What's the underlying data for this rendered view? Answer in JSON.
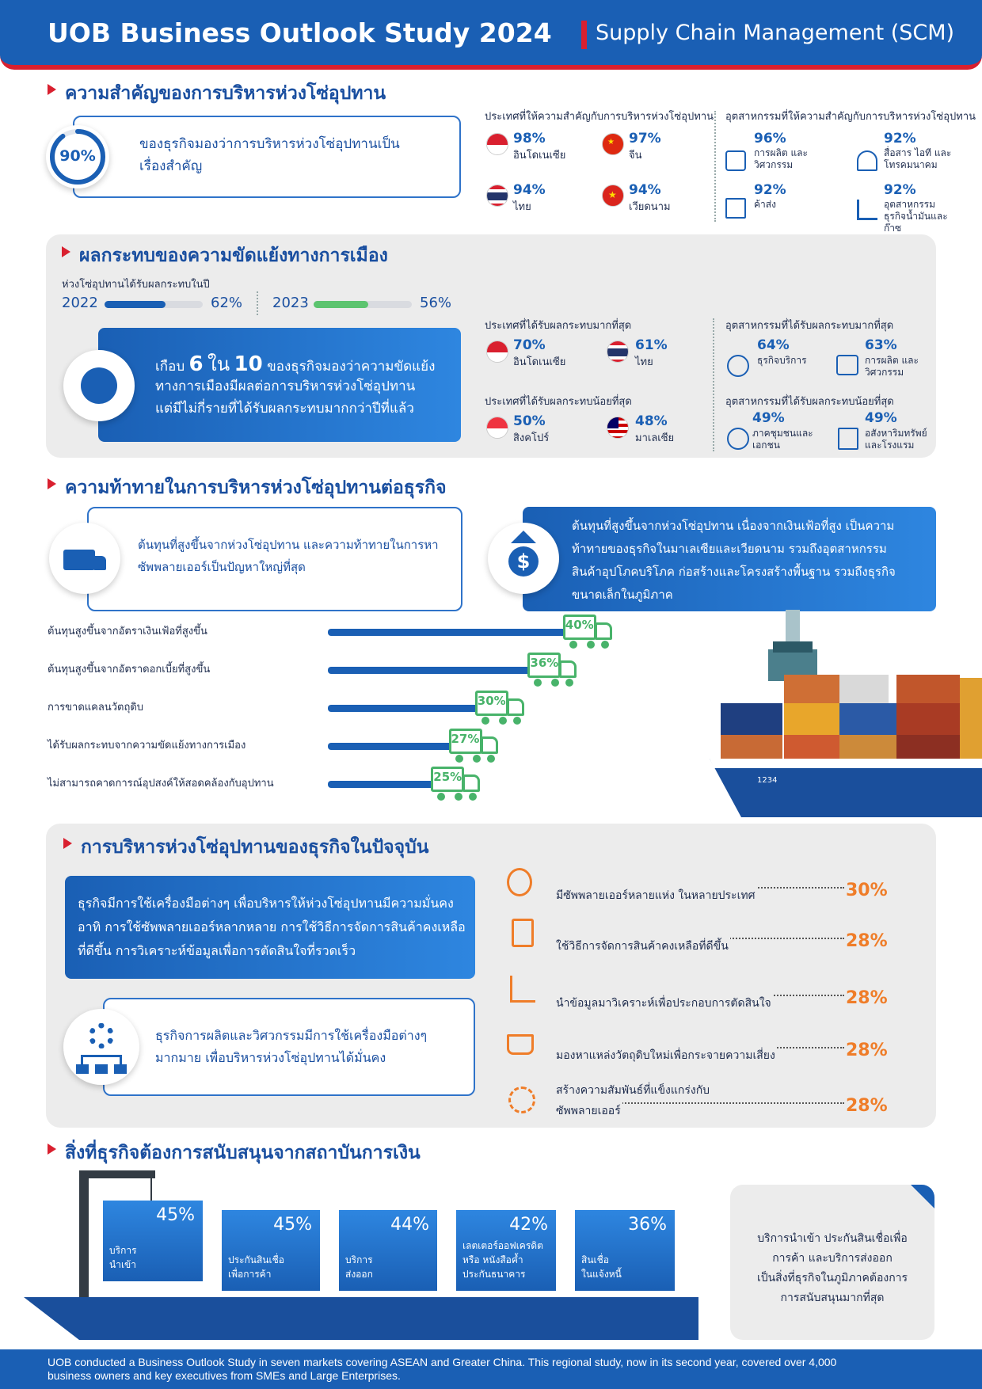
{
  "header": {
    "title": "UOB Business Outlook Study 2024",
    "subtitle": "Supply Chain Management (SCM)"
  },
  "section1": {
    "title": "ความสำคัญของการบริหารห่วงโซ่อุปทาน",
    "main_stat": {
      "value": "90%",
      "fraction": 0.9,
      "text": "ของธุรกิจมองว่าการบริหารห่วงโซ่อุปทานเป็นเรื่องสำคัญ"
    },
    "countries_title": "ประเทศที่ให้ความสำคัญกับการบริหารห่วงโซ่อุปทาน",
    "countries": [
      {
        "pct": "98%",
        "name": "อินโดเนเซีย",
        "flag": "indonesia-flag"
      },
      {
        "pct": "97%",
        "name": "จีน",
        "flag": "china-flag"
      },
      {
        "pct": "94%",
        "name": "ไทย",
        "flag": "thailand-flag"
      },
      {
        "pct": "94%",
        "name": "เวียดนาม",
        "flag": "vietnam-flag"
      }
    ],
    "industries_title": "อุตสาหกรรมที่ให้ความสำคัญกับการบริหารห่วงโซ่อุปทาน",
    "industries": [
      {
        "pct": "96%",
        "name": "การผลิต และ วิศวกรรม",
        "icon": "manufacturing-icon"
      },
      {
        "pct": "92%",
        "name": "สื่อสาร ไอที และ โทรคมนาคม",
        "icon": "telecom-icon"
      },
      {
        "pct": "92%",
        "name": "ค้าส่ง",
        "icon": "wholesale-icon"
      },
      {
        "pct": "92%",
        "name": "อุตสาหกรรมธุรกิจน้ำมันและก๊าซ",
        "icon": "oil-gas-icon"
      }
    ]
  },
  "section2": {
    "title": "ผลกระทบของความขัดแย้งทางการเมือง",
    "impact_label": "ห่วงโซ่อุปทานได้รับผลกระทบในปี",
    "years": [
      {
        "year": "2022",
        "pct": "62%",
        "value": 62,
        "color": "#1a5fb4"
      },
      {
        "year": "2023",
        "pct": "56%",
        "value": 56,
        "color": "#5cc46f"
      }
    ],
    "highlight": {
      "prefix": "เกือบ",
      "emph1": "6",
      "mid": "ใน",
      "emph2": "10",
      "line1": "ของธุรกิจมองว่าความขัดแย้ง",
      "line2": "ทางการเมืองมีผลต่อการบริหารห่วงโซ่อุปทาน",
      "line3": "แต่มีไม่กี่รายที่ได้รับผลกระทบมากกว่าปีที่แล้ว"
    },
    "most_country_title": "ประเทศที่ได้รับผลกระทบมากที่สุด",
    "most_countries": [
      {
        "pct": "70%",
        "name": "อินโดเนเซีย",
        "flag": "indonesia-flag"
      },
      {
        "pct": "61%",
        "name": "ไทย",
        "flag": "thailand-flag"
      }
    ],
    "least_country_title": "ประเทศที่ได้รับผลกระทบน้อยที่สุด",
    "least_countries": [
      {
        "pct": "50%",
        "name": "สิงคโปร์",
        "flag": "singapore-flag"
      },
      {
        "pct": "48%",
        "name": "มาเลเซีย",
        "flag": "malaysia-flag"
      }
    ],
    "most_industry_title": "อุตสาหกรรมที่ได้รับผลกระทบมากที่สุด",
    "most_industries": [
      {
        "pct": "64%",
        "name": "ธุรกิจบริการ",
        "icon": "services-icon"
      },
      {
        "pct": "63%",
        "name": "การผลิต และ วิศวกรรม",
        "icon": "manufacturing-icon"
      }
    ],
    "least_industry_title": "อุตสาหกรรมที่ได้รับผลกระทบน้อยที่สุด",
    "least_industries": [
      {
        "pct": "49%",
        "name": "ภาคชุมชนและเอกชน",
        "icon": "community-icon"
      },
      {
        "pct": "49%",
        "name": "อสังหาริมทรัพย์และโรงแรม",
        "icon": "real-estate-icon"
      }
    ]
  },
  "section3": {
    "title": "ความท้าทายในการบริหารห่วงโซ่อุปทานต่อธุรกิจ",
    "box1_line1": "ต้นทุนที่สูงขึ้นจากห่วงโซ่อุปทาน และความท้าทายในการหา",
    "box1_line2": "ซัพพลายเออร์เป็นปัญหาใหญ่ที่สุด",
    "box2_lines": [
      "ต้นทุนที่สูงขึ้นจากห่วงโซ่อุปทาน เนื่องจากเงินเฟ้อที่สูง เป็นความ",
      "ท้าทายของธุรกิจในมาเลเซียและเวียดนาม    รวมถึงอุตสาหกรรม",
      "สินค้าอุปโภคบริโภค ก่อสร้างและโครงสร้างพื้นฐาน รวมถึงธุรกิจ",
      "ขนาดเล็กในภูมิภาค"
    ],
    "ship_number": "1234"
  },
  "chart_data": {
    "type": "bar",
    "categories": [
      "ต้นทุนสูงขึ้นจากอัตราเงินเฟ้อที่สูงขึ้น",
      "ต้นทุนสูงขึ้นจากอัตราดอกเบี้ยที่สูงขึ้น",
      "การขาดแคลนวัตถุดิบ",
      "ได้รับผลกระทบจากความขัดแย้งทางการเมือง",
      "ไม่สามารถคาดการณ์อุปสงค์ให้สอดคล้องกับอุปทาน"
    ],
    "values": [
      40,
      36,
      30,
      27,
      25
    ],
    "labels": [
      "40%",
      "36%",
      "30%",
      "27%",
      "25%"
    ],
    "orientation": "horizontal",
    "grid": false
  },
  "section4": {
    "title": "การบริหารห่วงโซ่อุปทานของธุรกิจในปัจจุบัน",
    "box1_lines": [
      "ธุรกิจมีการใช้เครื่องมือต่างๆ  เพื่อบริหารให้ห่วงโซ่อุปทานมีความมั่นคง",
      "อาทิ  การใช้ซัพพลายเออร์หลากหลาย การใช้วิธีการจัดการสินค้าคงเหลือ",
      "ที่ดีขึ้น  การวิเคราะห์ข้อมูลเพื่อการตัดสินใจที่รวดเร็ว"
    ],
    "box2_line1": "ธุรกิจการผลิตและวิศวกรรมมีการใช้เครื่องมือต่างๆ",
    "box2_line2": "มากมาย เพื่อบริหารห่วงโซ่อุปทานได้มั่นคง",
    "items": [
      {
        "label": "มีซัพพลายเออร์หลายแห่ง ในหลายประเทศ",
        "pct": "30%",
        "icon": "supplier-network-icon"
      },
      {
        "label": "ใช้วิธีการจัดการสินค้าคงเหลือที่ดีขึ้น",
        "pct": "28%",
        "icon": "clipboard-icon"
      },
      {
        "label": "นำข้อมูลมาวิเคราะห์เพื่อประกอบการตัดสินใจ",
        "pct": "28%",
        "icon": "analytics-icon"
      },
      {
        "label": "มองหาแหล่งวัตถุดิบใหม่เพื่อกระจายความเสี่ยง",
        "pct": "28%",
        "icon": "sourcing-cart-icon"
      },
      {
        "label": "สร้างความสัมพันธ์ที่แข็งแกร่งกับ",
        "label2": "ซัพพลายเออร์",
        "pct": "28%",
        "icon": "relationship-icon"
      }
    ]
  },
  "section5": {
    "title": "สิ่งที่ธุรกิจต้องการสนับสนุนจากสถาบันการเงิน",
    "items": [
      {
        "pct": "45%",
        "value": 45,
        "line1": "บริการ",
        "line2": "นำเข้า"
      },
      {
        "pct": "45%",
        "value": 45,
        "line1": "ประกันสินเชื่อ",
        "line2": "เพื่อการค้า"
      },
      {
        "pct": "44%",
        "value": 44,
        "line1": "บริการ",
        "line2": "ส่งออก"
      },
      {
        "pct": "42%",
        "value": 42,
        "line1": "เลตเตอร์ออฟเครดิต",
        "line2": "หรือ หนังสือค้ำ",
        "line3": "ประกันธนาคาร"
      },
      {
        "pct": "36%",
        "value": 36,
        "line1": "สินเชื่อ",
        "line2": "ในแจ้งหนี้"
      }
    ],
    "note_lines": [
      "บริการนำเข้า ประกันสินเชื่อเพื่อ",
      "การค้า และบริการส่งออก",
      "เป็นสิ่งที่ธุรกิจในภูมิภาคต้องการ",
      "การสนับสนุนมากที่สุด"
    ]
  },
  "footer": {
    "line1": "UOB conducted a Business Outlook Study in seven markets covering ASEAN and Greater China. This regional study, now in its second year, covered over 4,000",
    "line2": "business owners and key executives from SMEs and Large Enterprises."
  }
}
